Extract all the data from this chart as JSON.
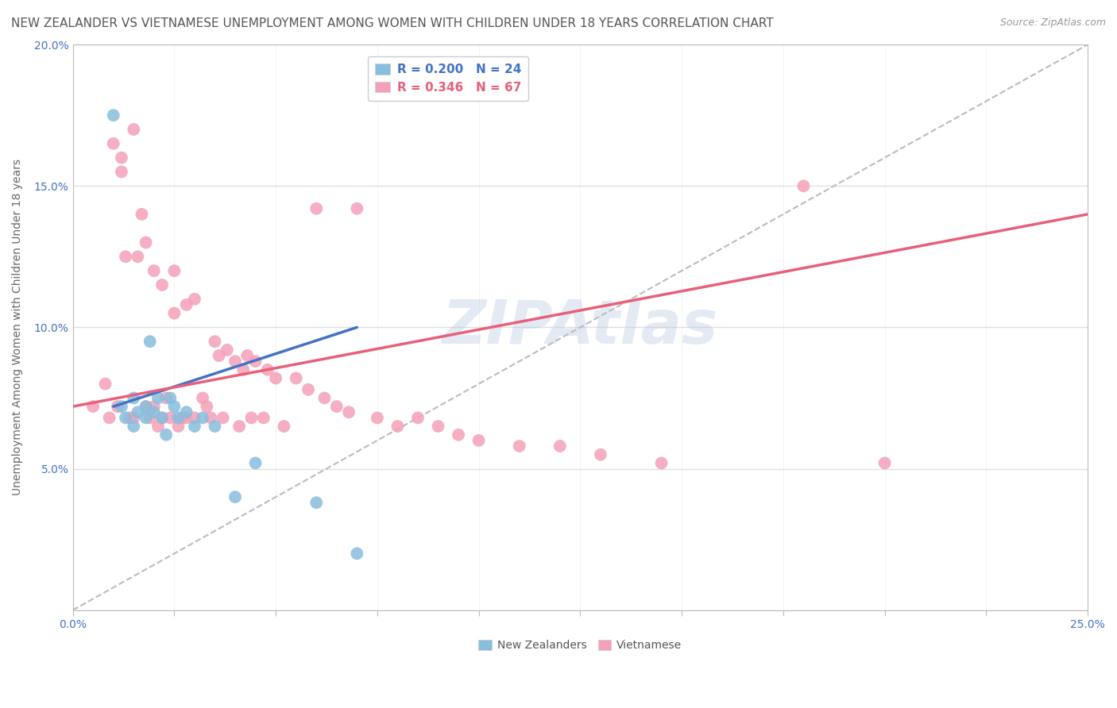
{
  "title": "NEW ZEALANDER VS VIETNAMESE UNEMPLOYMENT AMONG WOMEN WITH CHILDREN UNDER 18 YEARS CORRELATION CHART",
  "source": "Source: ZipAtlas.com",
  "ylabel": "Unemployment Among Women with Children Under 18 years",
  "xlim": [
    0.0,
    0.25
  ],
  "ylim": [
    0.0,
    0.2
  ],
  "color_nz": "#87BEDD",
  "color_viet": "#F4A0B8",
  "line_color_nz": "#4472C4",
  "line_color_viet": "#E8607A",
  "legend_r_nz_label": "R = 0.200   N = 24",
  "legend_r_viet_label": "R = 0.346   N = 67",
  "watermark": "ZIPAtlas",
  "nz_x": [
    0.01,
    0.012,
    0.013,
    0.015,
    0.015,
    0.016,
    0.018,
    0.018,
    0.019,
    0.02,
    0.021,
    0.022,
    0.023,
    0.024,
    0.025,
    0.026,
    0.028,
    0.03,
    0.032,
    0.035,
    0.04,
    0.045,
    0.06,
    0.07
  ],
  "nz_y": [
    0.175,
    0.072,
    0.068,
    0.075,
    0.065,
    0.07,
    0.072,
    0.068,
    0.095,
    0.07,
    0.075,
    0.068,
    0.062,
    0.075,
    0.072,
    0.068,
    0.07,
    0.065,
    0.068,
    0.065,
    0.04,
    0.052,
    0.038,
    0.02
  ],
  "viet_x": [
    0.005,
    0.008,
    0.009,
    0.01,
    0.011,
    0.012,
    0.012,
    0.013,
    0.014,
    0.015,
    0.015,
    0.016,
    0.017,
    0.018,
    0.018,
    0.019,
    0.02,
    0.02,
    0.021,
    0.022,
    0.022,
    0.023,
    0.024,
    0.025,
    0.025,
    0.026,
    0.027,
    0.028,
    0.028,
    0.03,
    0.03,
    0.032,
    0.033,
    0.034,
    0.035,
    0.036,
    0.037,
    0.038,
    0.04,
    0.041,
    0.042,
    0.043,
    0.044,
    0.045,
    0.047,
    0.048,
    0.05,
    0.052,
    0.055,
    0.058,
    0.06,
    0.062,
    0.065,
    0.068,
    0.07,
    0.075,
    0.08,
    0.085,
    0.09,
    0.095,
    0.1,
    0.11,
    0.12,
    0.13,
    0.145,
    0.18,
    0.2
  ],
  "viet_y": [
    0.072,
    0.08,
    0.068,
    0.165,
    0.072,
    0.16,
    0.155,
    0.125,
    0.068,
    0.17,
    0.068,
    0.125,
    0.14,
    0.13,
    0.072,
    0.068,
    0.12,
    0.072,
    0.065,
    0.115,
    0.068,
    0.075,
    0.068,
    0.12,
    0.105,
    0.065,
    0.068,
    0.108,
    0.068,
    0.11,
    0.068,
    0.075,
    0.072,
    0.068,
    0.095,
    0.09,
    0.068,
    0.092,
    0.088,
    0.065,
    0.085,
    0.09,
    0.068,
    0.088,
    0.068,
    0.085,
    0.082,
    0.065,
    0.082,
    0.078,
    0.142,
    0.075,
    0.072,
    0.07,
    0.142,
    0.068,
    0.065,
    0.068,
    0.065,
    0.062,
    0.06,
    0.058,
    0.058,
    0.055,
    0.052,
    0.15,
    0.052
  ],
  "nz_trend_x": [
    0.01,
    0.07
  ],
  "nz_trend_y": [
    0.072,
    0.1
  ],
  "viet_trend_x": [
    0.0,
    0.25
  ],
  "viet_trend_y": [
    0.072,
    0.14
  ],
  "bg_color": "#FFFFFF",
  "grid_color": "#E0E0E0",
  "title_fontsize": 11,
  "axis_label_fontsize": 10,
  "tick_fontsize": 10,
  "legend_fontsize": 11
}
